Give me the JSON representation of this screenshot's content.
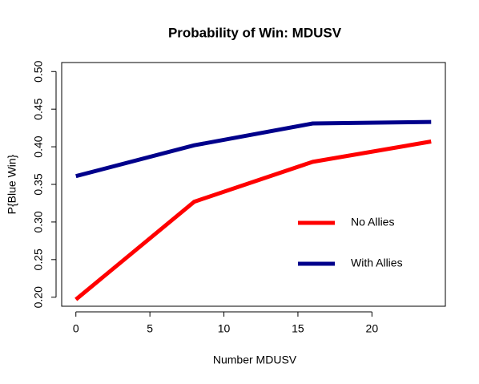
{
  "chart_data": {
    "type": "line",
    "title": "Probability of Win: MDUSV",
    "x_label": "Number MDUSV",
    "y_label": "P{Blue Win}",
    "x": [
      0,
      8,
      16,
      24
    ],
    "series": [
      {
        "name": "No Allies",
        "color": "#ff0000",
        "values": [
          0.197,
          0.327,
          0.38,
          0.407
        ]
      },
      {
        "name": "With Allies",
        "color": "#00008b",
        "values": [
          0.361,
          0.402,
          0.431,
          0.433
        ]
      }
    ],
    "xlim": [
      -0.96,
      24.96
    ],
    "xticks": [
      0,
      5,
      10,
      15,
      20
    ],
    "ylim": [
      0.188,
      0.512
    ],
    "yticks": [
      {
        "value": 0.2,
        "label": "0.20"
      },
      {
        "value": 0.25,
        "label": "0.25"
      },
      {
        "value": 0.3,
        "label": "0.30"
      },
      {
        "value": 0.35,
        "label": "0.35"
      },
      {
        "value": 0.4,
        "label": "0.40"
      },
      {
        "value": 0.45,
        "label": "0.45"
      },
      {
        "value": 0.5,
        "label": "0.50"
      }
    ],
    "legend": "right"
  }
}
